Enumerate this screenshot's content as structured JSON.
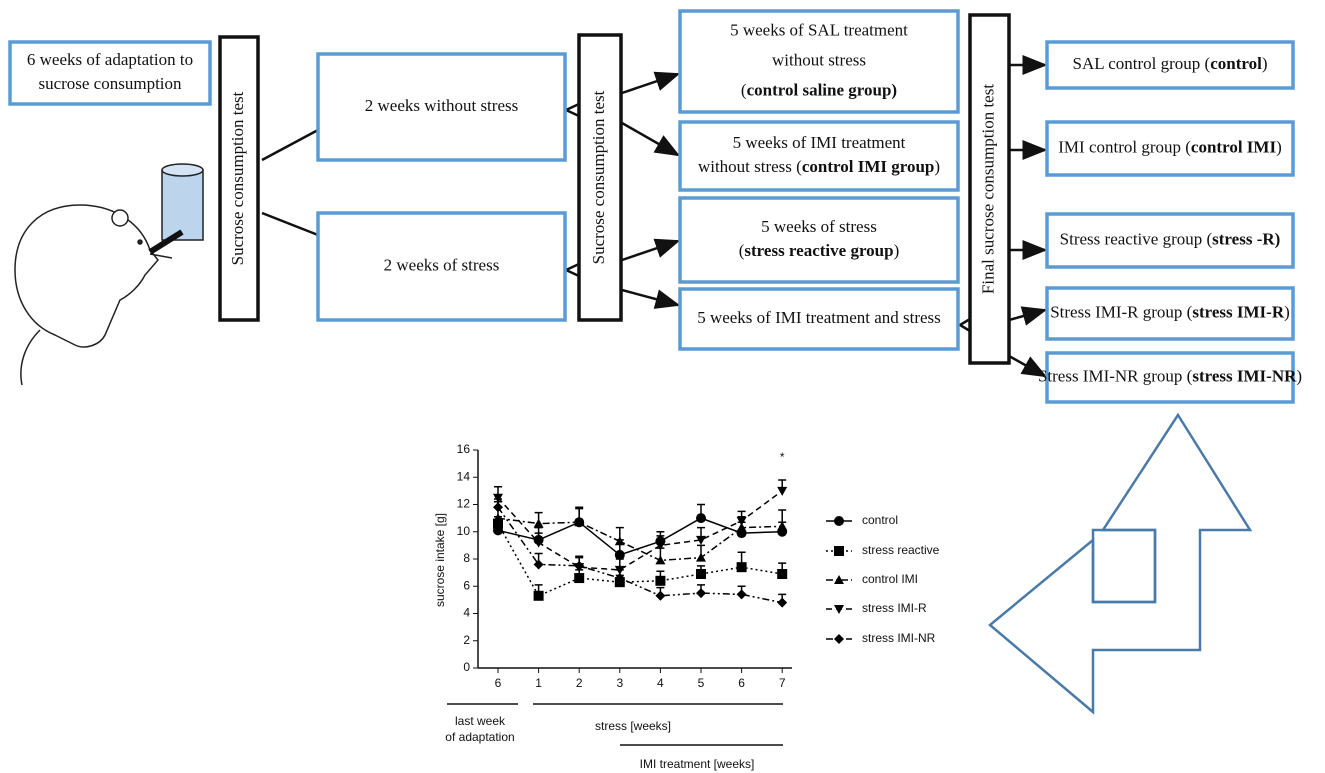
{
  "adaptation": {
    "lines": [
      [
        "6 weeks of adaptation to"
      ],
      [
        "sucrose consumption"
      ]
    ]
  },
  "tests": [
    "Sucrose consumption test",
    "Sucrose consumption test",
    "Final sucrose consumption test"
  ],
  "phase1": [
    {
      "lines": [
        [
          "2 weeks without stress"
        ]
      ]
    },
    {
      "lines": [
        [
          "2 weeks of stress"
        ]
      ]
    }
  ],
  "phase2": [
    {
      "lines": [
        [
          "5 weeks of SAL treatment"
        ],
        [
          "without stress"
        ],
        [
          "(",
          {
            "b": "control saline group)"
          }
        ]
      ]
    },
    {
      "lines": [
        [
          "5 weeks of IMI treatment"
        ],
        [
          "without stress  (",
          {
            "b": "control IMI group"
          },
          ")"
        ]
      ]
    },
    {
      "lines": [
        [
          "5 weeks of stress"
        ],
        [
          "(",
          {
            "b": "stress reactive group"
          },
          ")"
        ]
      ]
    },
    {
      "lines": [
        [
          "5 weeks of IMI treatment and stress"
        ]
      ]
    }
  ],
  "outcomes": [
    {
      "lines": [
        [
          "SAL control group (",
          {
            "b": "control"
          },
          ")"
        ]
      ]
    },
    {
      "lines": [
        [
          "IMI control group (",
          {
            "b": "control IMI"
          },
          ")"
        ]
      ]
    },
    {
      "lines": [
        [
          "Stress reactive group (",
          {
            "b": "stress -R)"
          }
        ]
      ]
    },
    {
      "lines": [
        [
          "Stress IMI-R group (",
          {
            "b": "stress IMI-R"
          },
          ")"
        ]
      ]
    },
    {
      "lines": [
        [
          "Stress IMI-NR group (",
          {
            "b": "stress IMI-NR"
          },
          ")"
        ]
      ]
    }
  ],
  "chart": {
    "type": "line",
    "y_label": "sucrose intake [g]",
    "categories": [
      "6",
      "1",
      "2",
      "3",
      "4",
      "5",
      "6",
      "7"
    ],
    "ylim": [
      0,
      16
    ],
    "yticks": [
      0,
      2,
      4,
      6,
      8,
      10,
      12,
      14,
      16
    ],
    "annotation": "*",
    "period_labels": {
      "adaptation": [
        "last week",
        "of  adaptation"
      ],
      "stress": "stress [weeks]",
      "imi": "IMI treatment [weeks]"
    },
    "series": [
      {
        "name": "control",
        "marker": "circle",
        "dash": "solid",
        "color": "#000000",
        "values": [
          10.1,
          9.4,
          10.7,
          8.3,
          9.3,
          11.0,
          9.9,
          10.0
        ],
        "errors": [
          0.4,
          0.9,
          1.1,
          1.1,
          0.7,
          1.0,
          0.8,
          0.7
        ]
      },
      {
        "name": "stress reactive",
        "marker": "square",
        "dash": "dotted",
        "color": "#000000",
        "values": [
          10.6,
          5.3,
          6.6,
          6.3,
          6.4,
          6.9,
          7.4,
          6.9
        ],
        "errors": [
          0.5,
          0.8,
          0.6,
          0.5,
          0.7,
          0.6,
          1.1,
          0.8
        ]
      },
      {
        "name": "control IMI",
        "marker": "triangle-up",
        "dash": "dashdot",
        "color": "#000000",
        "values": [
          11.0,
          10.6,
          10.7,
          9.3,
          7.9,
          8.1,
          10.3,
          10.4
        ],
        "errors": [
          1.2,
          0.8,
          1.0,
          1.0,
          0.9,
          0.9,
          0.8,
          1.2
        ]
      },
      {
        "name": "stress IMI-R",
        "marker": "triangle-down",
        "dash": "dashed",
        "color": "#000000",
        "values": [
          12.5,
          9.2,
          7.4,
          7.2,
          9.0,
          9.4,
          10.8,
          13.0
        ],
        "errors": [
          0.8,
          0.7,
          0.8,
          0.8,
          0.7,
          0.9,
          0.7,
          0.8
        ]
      },
      {
        "name": "stress IMI-NR",
        "marker": "diamond",
        "dash": "dashdotdot",
        "color": "#000000",
        "values": [
          11.8,
          7.6,
          7.5,
          6.6,
          5.3,
          5.5,
          5.4,
          4.8
        ],
        "errors": [
          0.6,
          0.8,
          0.6,
          0.6,
          0.6,
          0.6,
          0.6,
          0.6
        ]
      }
    ]
  }
}
